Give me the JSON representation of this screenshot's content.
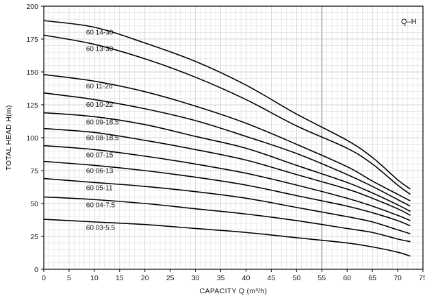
{
  "chart_data": {
    "type": "line",
    "corner_label": "Q–H",
    "xlabel": "CAPACITY  Q (m³/h)",
    "ylabel": "TOTAL HEAD  H(m)",
    "xlim": [
      0,
      75
    ],
    "ylim": [
      0,
      200
    ],
    "x_ticks": [
      "0",
      "5",
      "10",
      "15",
      "20",
      "25",
      "30",
      "35",
      "40",
      "45",
      "50",
      "55",
      "60",
      "65",
      "70",
      "75"
    ],
    "y_ticks": [
      "0",
      "25",
      "50",
      "75",
      "100",
      "125",
      "150",
      "175",
      "200"
    ],
    "grid": true,
    "x": [
      0,
      10,
      20,
      30,
      40,
      50,
      60,
      65,
      70,
      72.5
    ],
    "series": [
      {
        "name": "60 14-30",
        "label_x": 8.5,
        "values": [
          189,
          184,
          172,
          158,
          140,
          118,
          98,
          85,
          68,
          61
        ]
      },
      {
        "name": "60 13-30",
        "label_x": 8.5,
        "values": [
          178,
          171,
          160,
          146,
          129,
          109,
          92,
          80,
          64,
          57
        ]
      },
      {
        "name": "60 11-26",
        "label_x": 8.5,
        "values": [
          148,
          143,
          135,
          124,
          111,
          95,
          78,
          67,
          57,
          52
        ]
      },
      {
        "name": "60 10-22",
        "label_x": 8.5,
        "values": [
          134,
          129,
          122,
          113,
          101,
          88,
          72,
          63,
          53,
          48
        ]
      },
      {
        "name": "60 09-18.5",
        "label_x": 8.5,
        "values": [
          119,
          116,
          110,
          101,
          92,
          79,
          66,
          58,
          49,
          44
        ]
      },
      {
        "name": "60 08-18.5",
        "label_x": 8.5,
        "values": [
          107,
          104,
          98,
          91,
          83,
          72,
          61,
          54,
          46,
          41
        ]
      },
      {
        "name": "60 07-15",
        "label_x": 8.5,
        "values": [
          94,
          91,
          86,
          80,
          73,
          64,
          54,
          48,
          41,
          37
        ]
      },
      {
        "name": "60 06-13",
        "label_x": 8.5,
        "values": [
          82,
          79,
          75,
          70,
          64,
          56,
          48,
          43,
          37,
          33
        ]
      },
      {
        "name": "60 05-11",
        "label_x": 8.5,
        "values": [
          69,
          66,
          63,
          59,
          54,
          47,
          40,
          36,
          30,
          27
        ]
      },
      {
        "name": "60 04-7.5",
        "label_x": 8.5,
        "values": [
          55,
          53,
          50,
          46,
          42,
          37,
          31,
          28,
          23,
          21
        ]
      },
      {
        "name": "60 03-5.5",
        "label_x": 8.5,
        "values": [
          38,
          36,
          34,
          31,
          28,
          24,
          20,
          17,
          13,
          10
        ]
      }
    ]
  }
}
